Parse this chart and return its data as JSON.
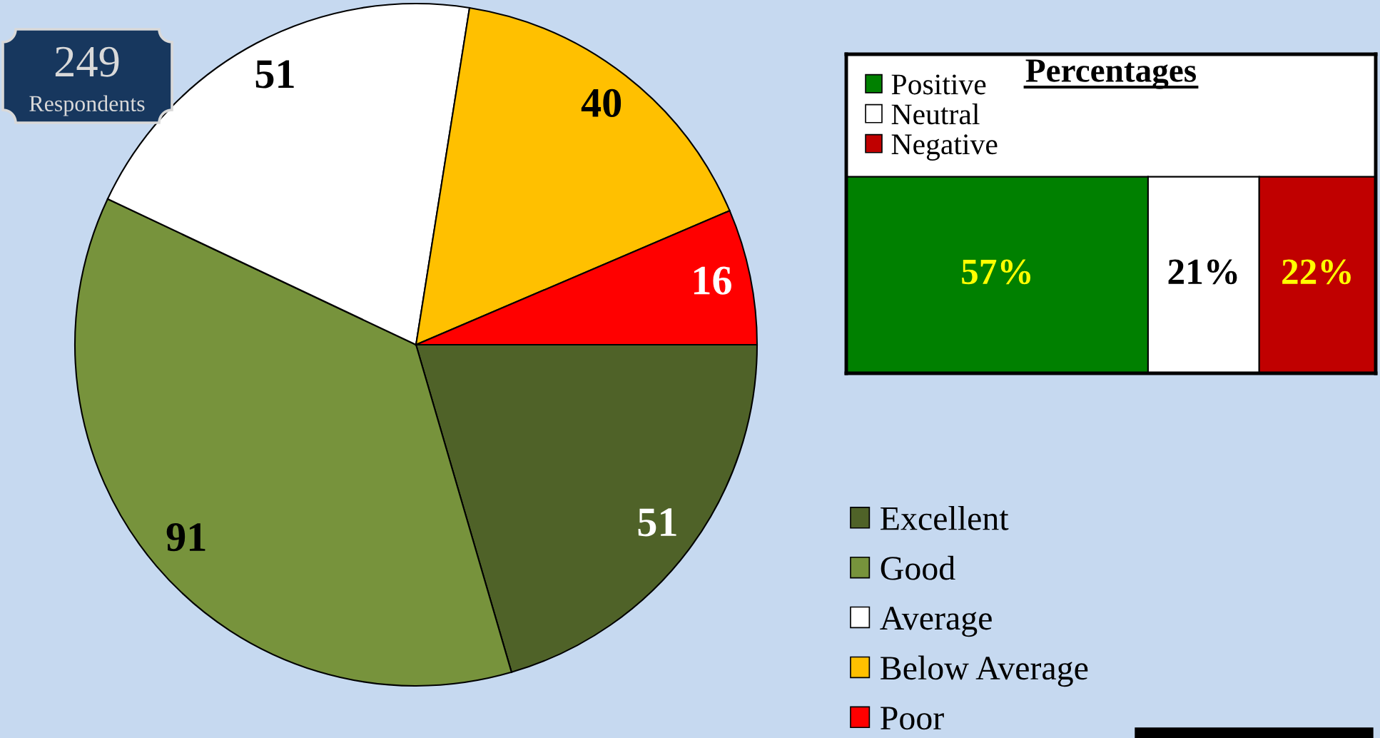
{
  "chart_data": [
    {
      "type": "pie",
      "categories": [
        "Excellent",
        "Good",
        "Average",
        "Below Average",
        "Poor"
      ],
      "values": [
        51,
        91,
        51,
        40,
        16
      ],
      "colors": [
        "#4f6228",
        "#77933c",
        "#ffffff",
        "#ffc000",
        "#ff0000"
      ],
      "data_labels": true,
      "legend": "bottom right",
      "annotations": [
        "249",
        "Respondents"
      ]
    },
    {
      "type": "bar",
      "title": "Percentages",
      "orientation": "horizontal",
      "stacked": true,
      "categories": [
        null
      ],
      "series": [
        {
          "name": "Positive",
          "color": "#008000",
          "values": [
            57
          ],
          "value_labels": [
            "57%"
          ]
        },
        {
          "name": "Neutral",
          "color": "#ffffff",
          "values": [
            21
          ],
          "value_labels": [
            "21%"
          ]
        },
        {
          "name": "Negative",
          "color": "#c00000",
          "values": [
            22
          ],
          "value_labels": [
            "22%"
          ]
        }
      ],
      "legend": "top left",
      "tick_labels": false
    }
  ]
}
